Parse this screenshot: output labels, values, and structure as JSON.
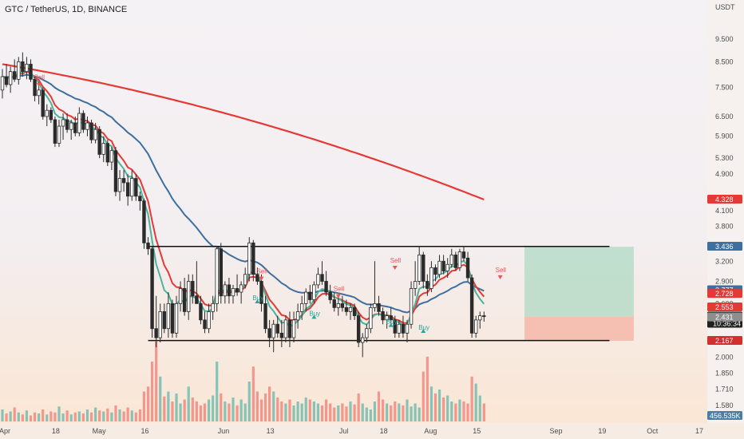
{
  "title": "GTC / TetherUS, 1D, BINANCE",
  "currency": "USDT",
  "colors": {
    "bg_top": "#f5f2f5",
    "bg_bottom": "#fbe6d2",
    "up": "#26a69a",
    "down": "#ef5350",
    "candle": "#2b2b2b",
    "ema_red": "#e53935",
    "ema_blue": "#3d6fa0",
    "ema_green": "#4db39a",
    "ma_200": "#e53935",
    "target_zone": "#b7dcc8",
    "stop_zone": "#f5b8a8",
    "channel": "#111111"
  },
  "chart_data": {
    "type": "candlestick",
    "y_scale": "log",
    "ylim": [
      1.46,
      11.5
    ],
    "x_domain": [
      0,
      117
    ],
    "y_ticks": [
      "9.500",
      "8.500",
      "7.500",
      "6.500",
      "5.900",
      "5.300",
      "4.900",
      "4.100",
      "3.800",
      "3.200",
      "2.900",
      "2.600",
      "2.000",
      "1.850",
      "1.710",
      "1.580"
    ],
    "y_tick_values": [
      9.5,
      8.5,
      7.5,
      6.5,
      5.9,
      5.3,
      4.9,
      4.1,
      3.8,
      3.2,
      2.9,
      2.6,
      2.0,
      1.85,
      1.71,
      1.58
    ],
    "x_ticks": [
      {
        "label": "Apr",
        "day": 0
      },
      {
        "label": "18",
        "day": 13
      },
      {
        "label": "May",
        "day": 23
      },
      {
        "label": "16",
        "day": 35
      },
      {
        "label": "Jun",
        "day": 54
      },
      {
        "label": "13",
        "day": 66
      },
      {
        "label": "Jul",
        "day": 84
      },
      {
        "label": "18",
        "day": 94
      },
      {
        "label": "Aug",
        "day": 105
      },
      {
        "label": "15",
        "day": 117
      },
      {
        "label": "Sep",
        "day": 136
      },
      {
        "label": "19",
        "day": 148
      },
      {
        "label": "Oct",
        "day": 160
      },
      {
        "label": "17",
        "day": 172
      }
    ],
    "price_badges": [
      {
        "label": "4.328",
        "value": 4.328,
        "color": "#e53935",
        "text": "#ffffff"
      },
      {
        "label": "3.436",
        "value": 3.436,
        "color": "#3d6fa0",
        "text": "#ffffff"
      },
      {
        "label": "2.777",
        "value": 2.777,
        "color": "#3d6fa0",
        "text": "#ffffff"
      },
      {
        "label": "2.728",
        "value": 2.728,
        "color": "#e53935",
        "text": "#ffffff"
      },
      {
        "label": "2.553",
        "value": 2.553,
        "color": "#e53935",
        "text": "#ffffff"
      },
      {
        "label": "2.441",
        "value": 2.441,
        "color": "#1f1f1f",
        "text": "#ffffff",
        "sub": "10:36:34"
      },
      {
        "label": "2.431",
        "value": 2.431,
        "color": "#8e8e8e",
        "text": "#ffffff"
      },
      {
        "label": "2.167",
        "value": 2.167,
        "color": "#d32f2f",
        "text": "#ffffff"
      }
    ],
    "volume_badge": "456.535K",
    "channel": {
      "upper": {
        "x0": 36,
        "x1": 150,
        "y": 3.44
      },
      "lower": {
        "x0": 36,
        "x1": 150,
        "y": 2.17
      }
    },
    "position": {
      "x0": 129,
      "x1": 156,
      "entry": 2.44,
      "target": 3.436,
      "stop": 2.167
    },
    "signals": [
      {
        "label": "Sell",
        "day": 9,
        "price": 7.55,
        "type": "sell"
      },
      {
        "label": "Sell",
        "day": 64,
        "price": 2.92,
        "type": "sell"
      },
      {
        "label": "Buy",
        "day": 63,
        "price": 2.75,
        "type": "buy"
      },
      {
        "label": "Sell",
        "day": 83,
        "price": 2.68,
        "type": "sell"
      },
      {
        "label": "Buy",
        "day": 77,
        "price": 2.55,
        "type": "buy"
      },
      {
        "label": "Sell",
        "day": 97,
        "price": 3.08,
        "type": "sell"
      },
      {
        "label": "Buy",
        "day": 96,
        "price": 2.45,
        "type": "buy"
      },
      {
        "label": "Buy",
        "day": 104,
        "price": 2.38,
        "type": "buy"
      },
      {
        "label": "Sell",
        "day": 123,
        "price": 2.94,
        "type": "sell"
      }
    ],
    "candles": [
      {
        "o": 7.4,
        "h": 8.2,
        "l": 7.1,
        "c": 7.9
      },
      {
        "o": 7.9,
        "h": 8.4,
        "l": 7.5,
        "c": 7.6
      },
      {
        "o": 7.6,
        "h": 8.3,
        "l": 7.3,
        "c": 8.1
      },
      {
        "o": 8.1,
        "h": 8.6,
        "l": 7.7,
        "c": 7.8
      },
      {
        "o": 7.8,
        "h": 8.7,
        "l": 7.6,
        "c": 8.5
      },
      {
        "o": 8.5,
        "h": 8.9,
        "l": 7.9,
        "c": 8.1
      },
      {
        "o": 8.1,
        "h": 8.7,
        "l": 7.8,
        "c": 8.4
      },
      {
        "o": 8.4,
        "h": 8.6,
        "l": 7.7,
        "c": 7.8
      },
      {
        "o": 7.8,
        "h": 7.9,
        "l": 7.0,
        "c": 7.2
      },
      {
        "o": 7.2,
        "h": 7.7,
        "l": 6.9,
        "c": 7.4
      },
      {
        "o": 7.4,
        "h": 7.5,
        "l": 6.4,
        "c": 6.5
      },
      {
        "o": 6.5,
        "h": 6.9,
        "l": 6.2,
        "c": 6.7
      },
      {
        "o": 6.7,
        "h": 6.8,
        "l": 6.3,
        "c": 6.4
      },
      {
        "o": 6.4,
        "h": 6.5,
        "l": 5.6,
        "c": 5.7
      },
      {
        "o": 5.7,
        "h": 6.4,
        "l": 5.6,
        "c": 6.2
      },
      {
        "o": 6.2,
        "h": 6.6,
        "l": 5.8,
        "c": 6.4
      },
      {
        "o": 6.4,
        "h": 6.6,
        "l": 6.0,
        "c": 6.1
      },
      {
        "o": 6.1,
        "h": 6.4,
        "l": 5.8,
        "c": 6.3
      },
      {
        "o": 6.3,
        "h": 6.5,
        "l": 5.9,
        "c": 6.0
      },
      {
        "o": 6.0,
        "h": 6.8,
        "l": 5.9,
        "c": 6.6
      },
      {
        "o": 6.6,
        "h": 6.7,
        "l": 6.0,
        "c": 6.1
      },
      {
        "o": 6.1,
        "h": 6.5,
        "l": 5.9,
        "c": 6.3
      },
      {
        "o": 6.3,
        "h": 6.4,
        "l": 5.7,
        "c": 5.8
      },
      {
        "o": 5.8,
        "h": 6.3,
        "l": 5.7,
        "c": 6.1
      },
      {
        "o": 6.1,
        "h": 6.2,
        "l": 5.3,
        "c": 5.4
      },
      {
        "o": 5.4,
        "h": 5.9,
        "l": 5.2,
        "c": 5.7
      },
      {
        "o": 5.7,
        "h": 5.8,
        "l": 5.1,
        "c": 5.2
      },
      {
        "o": 5.2,
        "h": 5.6,
        "l": 5.0,
        "c": 5.5
      },
      {
        "o": 5.5,
        "h": 5.6,
        "l": 4.4,
        "c": 4.5
      },
      {
        "o": 4.5,
        "h": 5.0,
        "l": 4.3,
        "c": 4.8
      },
      {
        "o": 4.8,
        "h": 5.0,
        "l": 4.5,
        "c": 4.7
      },
      {
        "o": 4.7,
        "h": 4.9,
        "l": 4.2,
        "c": 4.4
      },
      {
        "o": 4.4,
        "h": 5.0,
        "l": 4.3,
        "c": 4.8
      },
      {
        "o": 4.8,
        "h": 4.9,
        "l": 4.3,
        "c": 4.4
      },
      {
        "o": 4.4,
        "h": 4.5,
        "l": 4.1,
        "c": 4.3
      },
      {
        "o": 4.3,
        "h": 4.35,
        "l": 3.4,
        "c": 3.5
      },
      {
        "o": 3.5,
        "h": 3.6,
        "l": 3.3,
        "c": 3.4
      },
      {
        "o": 3.4,
        "h": 3.45,
        "l": 2.2,
        "c": 2.3
      },
      {
        "o": 2.3,
        "h": 2.7,
        "l": 2.1,
        "c": 2.2
      },
      {
        "o": 2.2,
        "h": 2.6,
        "l": 2.15,
        "c": 2.5
      },
      {
        "o": 2.5,
        "h": 2.6,
        "l": 2.25,
        "c": 2.3
      },
      {
        "o": 2.3,
        "h": 2.75,
        "l": 2.2,
        "c": 2.6
      },
      {
        "o": 2.6,
        "h": 2.65,
        "l": 2.2,
        "c": 2.25
      },
      {
        "o": 2.25,
        "h": 2.7,
        "l": 2.2,
        "c": 2.6
      },
      {
        "o": 2.6,
        "h": 2.9,
        "l": 2.5,
        "c": 2.8
      },
      {
        "o": 2.8,
        "h": 2.95,
        "l": 2.45,
        "c": 2.5
      },
      {
        "o": 2.5,
        "h": 3.0,
        "l": 2.4,
        "c": 2.9
      },
      {
        "o": 2.9,
        "h": 3.0,
        "l": 2.6,
        "c": 2.7
      },
      {
        "o": 2.7,
        "h": 3.2,
        "l": 2.6,
        "c": 2.6
      },
      {
        "o": 2.6,
        "h": 2.7,
        "l": 2.35,
        "c": 2.4
      },
      {
        "o": 2.4,
        "h": 2.5,
        "l": 2.25,
        "c": 2.3
      },
      {
        "o": 2.3,
        "h": 2.6,
        "l": 2.25,
        "c": 2.5
      },
      {
        "o": 2.5,
        "h": 2.7,
        "l": 2.4,
        "c": 2.6
      },
      {
        "o": 2.6,
        "h": 3.45,
        "l": 2.5,
        "c": 3.4
      },
      {
        "o": 3.4,
        "h": 3.5,
        "l": 2.6,
        "c": 2.7
      },
      {
        "o": 2.7,
        "h": 2.9,
        "l": 2.6,
        "c": 2.85
      },
      {
        "o": 2.85,
        "h": 2.95,
        "l": 2.6,
        "c": 2.7
      },
      {
        "o": 2.7,
        "h": 2.85,
        "l": 2.6,
        "c": 2.8
      },
      {
        "o": 2.8,
        "h": 3.0,
        "l": 2.7,
        "c": 2.75
      },
      {
        "o": 2.75,
        "h": 2.9,
        "l": 2.6,
        "c": 2.85
      },
      {
        "o": 2.85,
        "h": 3.1,
        "l": 2.8,
        "c": 3.0
      },
      {
        "o": 3.0,
        "h": 3.6,
        "l": 2.9,
        "c": 3.5
      },
      {
        "o": 3.5,
        "h": 3.55,
        "l": 2.9,
        "c": 3.0
      },
      {
        "o": 3.0,
        "h": 3.1,
        "l": 2.85,
        "c": 2.9
      },
      {
        "o": 2.9,
        "h": 3.0,
        "l": 2.5,
        "c": 2.6
      },
      {
        "o": 2.6,
        "h": 2.7,
        "l": 2.25,
        "c": 2.3
      },
      {
        "o": 2.3,
        "h": 2.4,
        "l": 2.1,
        "c": 2.2
      },
      {
        "o": 2.2,
        "h": 2.4,
        "l": 2.05,
        "c": 2.35
      },
      {
        "o": 2.35,
        "h": 2.45,
        "l": 2.2,
        "c": 2.25
      },
      {
        "o": 2.25,
        "h": 2.4,
        "l": 2.1,
        "c": 2.2
      },
      {
        "o": 2.2,
        "h": 2.45,
        "l": 2.15,
        "c": 2.4
      },
      {
        "o": 2.4,
        "h": 2.5,
        "l": 2.1,
        "c": 2.2
      },
      {
        "o": 2.2,
        "h": 2.5,
        "l": 2.15,
        "c": 2.4
      },
      {
        "o": 2.4,
        "h": 2.6,
        "l": 2.3,
        "c": 2.5
      },
      {
        "o": 2.5,
        "h": 2.7,
        "l": 2.4,
        "c": 2.6
      },
      {
        "o": 2.6,
        "h": 2.8,
        "l": 2.5,
        "c": 2.75
      },
      {
        "o": 2.75,
        "h": 2.85,
        "l": 2.6,
        "c": 2.65
      },
      {
        "o": 2.65,
        "h": 2.9,
        "l": 2.6,
        "c": 2.85
      },
      {
        "o": 2.85,
        "h": 3.1,
        "l": 2.8,
        "c": 3.0
      },
      {
        "o": 3.0,
        "h": 3.2,
        "l": 2.85,
        "c": 2.9
      },
      {
        "o": 2.9,
        "h": 3.05,
        "l": 2.7,
        "c": 2.75
      },
      {
        "o": 2.75,
        "h": 2.85,
        "l": 2.6,
        "c": 2.65
      },
      {
        "o": 2.65,
        "h": 2.75,
        "l": 2.5,
        "c": 2.55
      },
      {
        "o": 2.55,
        "h": 2.7,
        "l": 2.45,
        "c": 2.6
      },
      {
        "o": 2.6,
        "h": 2.7,
        "l": 2.5,
        "c": 2.55
      },
      {
        "o": 2.55,
        "h": 2.65,
        "l": 2.45,
        "c": 2.5
      },
      {
        "o": 2.5,
        "h": 2.6,
        "l": 2.4,
        "c": 2.55
      },
      {
        "o": 2.55,
        "h": 2.6,
        "l": 2.4,
        "c": 2.45
      },
      {
        "o": 2.45,
        "h": 2.5,
        "l": 2.1,
        "c": 2.15
      },
      {
        "o": 2.15,
        "h": 2.25,
        "l": 2.0,
        "c": 2.2
      },
      {
        "o": 2.2,
        "h": 2.35,
        "l": 2.15,
        "c": 2.3
      },
      {
        "o": 2.3,
        "h": 2.6,
        "l": 2.25,
        "c": 2.55
      },
      {
        "o": 2.55,
        "h": 3.2,
        "l": 2.5,
        "c": 2.6
      },
      {
        "o": 2.6,
        "h": 2.7,
        "l": 2.45,
        "c": 2.5
      },
      {
        "o": 2.5,
        "h": 2.55,
        "l": 2.35,
        "c": 2.4
      },
      {
        "o": 2.4,
        "h": 2.5,
        "l": 2.3,
        "c": 2.45
      },
      {
        "o": 2.45,
        "h": 2.55,
        "l": 2.35,
        "c": 2.4
      },
      {
        "o": 2.4,
        "h": 2.45,
        "l": 2.2,
        "c": 2.25
      },
      {
        "o": 2.25,
        "h": 2.4,
        "l": 2.2,
        "c": 2.35
      },
      {
        "o": 2.35,
        "h": 2.45,
        "l": 2.2,
        "c": 2.25
      },
      {
        "o": 2.25,
        "h": 2.4,
        "l": 2.15,
        "c": 2.35
      },
      {
        "o": 2.35,
        "h": 2.9,
        "l": 2.3,
        "c": 2.8
      },
      {
        "o": 2.8,
        "h": 3.2,
        "l": 2.7,
        "c": 2.9
      },
      {
        "o": 2.9,
        "h": 3.45,
        "l": 2.85,
        "c": 3.3
      },
      {
        "o": 3.3,
        "h": 3.35,
        "l": 2.8,
        "c": 2.9
      },
      {
        "o": 2.9,
        "h": 3.0,
        "l": 2.7,
        "c": 2.8
      },
      {
        "o": 2.8,
        "h": 3.2,
        "l": 2.75,
        "c": 3.1
      },
      {
        "o": 3.1,
        "h": 3.15,
        "l": 2.9,
        "c": 3.0
      },
      {
        "o": 3.0,
        "h": 3.3,
        "l": 2.95,
        "c": 3.2
      },
      {
        "o": 3.2,
        "h": 3.3,
        "l": 3.0,
        "c": 3.05
      },
      {
        "o": 3.05,
        "h": 3.25,
        "l": 2.95,
        "c": 3.15
      },
      {
        "o": 3.15,
        "h": 3.4,
        "l": 3.1,
        "c": 3.3
      },
      {
        "o": 3.3,
        "h": 3.35,
        "l": 3.05,
        "c": 3.1
      },
      {
        "o": 3.1,
        "h": 3.4,
        "l": 3.05,
        "c": 3.35
      },
      {
        "o": 3.35,
        "h": 3.45,
        "l": 3.2,
        "c": 3.25
      },
      {
        "o": 3.25,
        "h": 3.35,
        "l": 2.9,
        "c": 2.95
      },
      {
        "o": 2.95,
        "h": 3.0,
        "l": 2.2,
        "c": 2.25
      },
      {
        "o": 2.25,
        "h": 2.45,
        "l": 2.2,
        "c": 2.4
      },
      {
        "o": 2.4,
        "h": 2.5,
        "l": 2.3,
        "c": 2.45
      },
      {
        "o": 2.45,
        "h": 2.5,
        "l": 2.38,
        "c": 2.44
      }
    ],
    "volumes": [
      12,
      8,
      10,
      14,
      9,
      7,
      11,
      6,
      9,
      8,
      12,
      7,
      10,
      9,
      15,
      8,
      11,
      7,
      9,
      10,
      8,
      12,
      9,
      14,
      11,
      10,
      13,
      9,
      16,
      12,
      10,
      14,
      11,
      9,
      12,
      30,
      35,
      60,
      80,
      45,
      25,
      30,
      20,
      28,
      18,
      22,
      35,
      24,
      20,
      16,
      18,
      22,
      26,
      60,
      28,
      20,
      18,
      24,
      16,
      22,
      18,
      40,
      55,
      30,
      22,
      28,
      35,
      30,
      24,
      20,
      18,
      22,
      16,
      20,
      18,
      24,
      22,
      20,
      18,
      16,
      22,
      18,
      14,
      16,
      18,
      15,
      20,
      17,
      28,
      18,
      14,
      12,
      20,
      30,
      22,
      18,
      16,
      20,
      18,
      16,
      22,
      15,
      18,
      14,
      50,
      65,
      35,
      28,
      32,
      24,
      26,
      20,
      18,
      22,
      20,
      18,
      45,
      38,
      26,
      18
    ]
  }
}
